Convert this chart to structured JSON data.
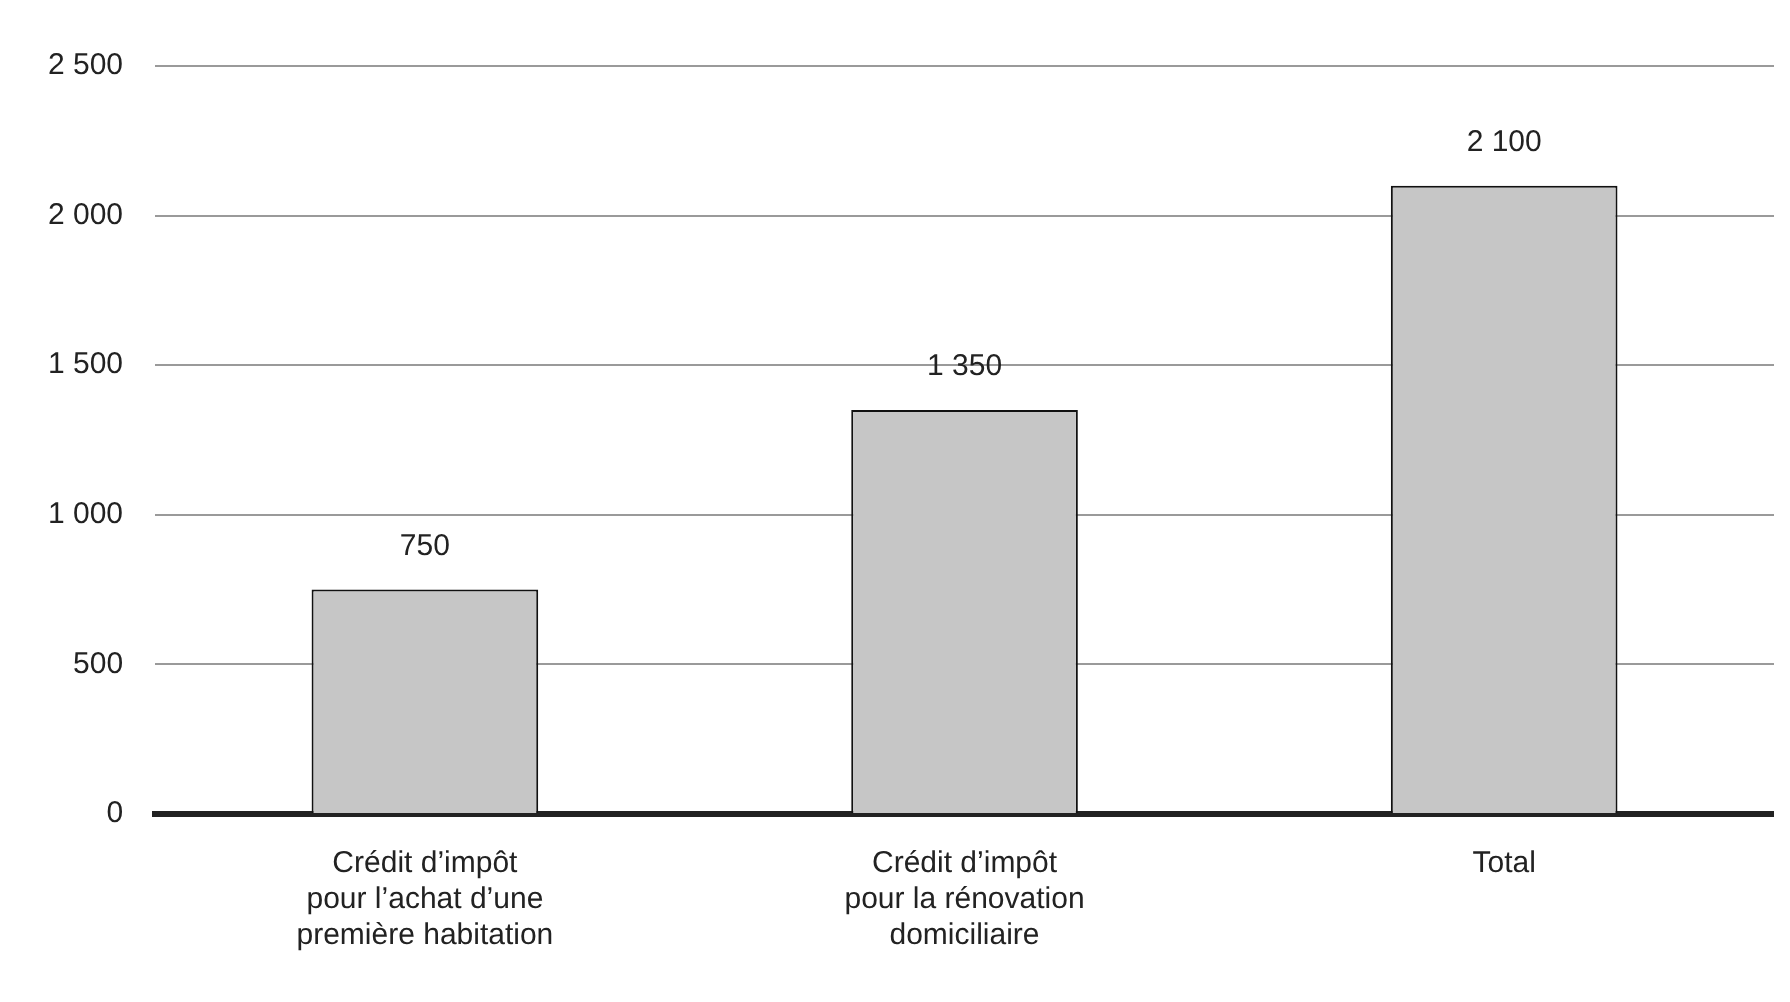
{
  "chart_data": {
    "type": "bar",
    "categories": [
      "Crédit d’impôt\npour l’achat d’une\npremière habitation",
      "Crédit d’impôt\npour la rénovation\ndomiciliaire",
      "Total"
    ],
    "values": [
      750,
      1350,
      2100
    ],
    "color": "#c6c6c6",
    "value_labels": [
      "750",
      "1 350",
      "2 100"
    ],
    "ylim": [
      0,
      2500
    ],
    "yticks": [
      {
        "value": 0,
        "label": "0"
      },
      {
        "value": 500,
        "label": "500"
      },
      {
        "value": 1000,
        "label": "1 000"
      },
      {
        "value": 1500,
        "label": "1 500"
      },
      {
        "value": 2000,
        "label": "2 000"
      },
      {
        "value": 2500,
        "label": "2 500"
      }
    ],
    "grid": "y",
    "legend": false
  }
}
